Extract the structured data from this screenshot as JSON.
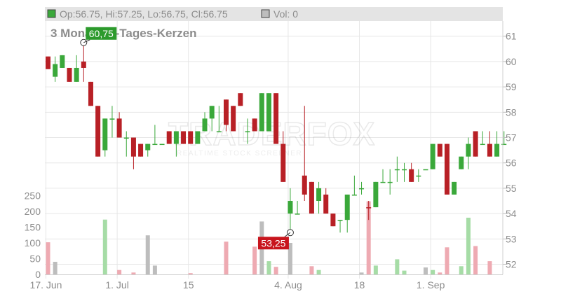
{
  "header": {
    "ohlc_label": "Op:56.75, Hi:57.25, Lo:56.75, Cl:56.75",
    "vol_label": "Vol: 0"
  },
  "title": "3 Monate, 1-Tages-Kerzen",
  "watermark": {
    "brand": "TRADERFOX",
    "tagline": "REALTIME STOCK SCREENER"
  },
  "colors": {
    "up": "#3aa83a",
    "down": "#b82026",
    "up_volume": "#a6dca6",
    "down_volume": "#eeaab2",
    "neutral_volume": "#bdbdbd",
    "header_bg": "#e4e4e4",
    "grid": "#e6e6e6",
    "tick_text": "#8c8c8c",
    "max_badge": "#2c9a2c",
    "min_badge": "#c8151d"
  },
  "chart_data": {
    "type": "candlestick",
    "title": "3 Monate, 1-Tages-Kerzen",
    "x_ticks": [
      {
        "label": "17. Jun",
        "i": 0
      },
      {
        "label": "1. Jul",
        "i": 10
      },
      {
        "label": "15",
        "i": 20
      },
      {
        "label": "4. Aug",
        "i": 34
      },
      {
        "label": "18",
        "i": 44
      },
      {
        "label": "1. Sep",
        "i": 54
      }
    ],
    "price_ticks": [
      52,
      53,
      54,
      55,
      56,
      57,
      58,
      59,
      60,
      61
    ],
    "price_range": [
      51.6,
      61.6
    ],
    "volume_ticks": [
      0,
      50,
      100,
      150,
      200,
      250
    ],
    "volume_range": [
      0,
      260
    ],
    "annotations": [
      {
        "text": "60,75",
        "i": 5,
        "value": 60.75,
        "kind": "max"
      },
      {
        "text": "53,25",
        "i": 34,
        "value": 53.25,
        "kind": "min"
      }
    ],
    "candles": [
      {
        "o": 60.2,
        "h": 60.2,
        "l": 59.7,
        "c": 59.7,
        "v": 102,
        "d": "down"
      },
      {
        "o": 59.4,
        "h": 60.2,
        "l": 59.2,
        "c": 59.9,
        "v": 40,
        "d": "neutral"
      },
      {
        "o": 59.75,
        "h": 60.25,
        "l": 59.75,
        "c": 60.25,
        "v": 0,
        "d": "up"
      },
      {
        "o": 59.75,
        "h": 59.75,
        "l": 59.2,
        "c": 59.2,
        "v": 0,
        "d": "down"
      },
      {
        "o": 59.2,
        "h": 60.25,
        "l": 59.2,
        "c": 59.75,
        "v": 0,
        "d": "up"
      },
      {
        "o": 60.0,
        "h": 60.75,
        "l": 59.2,
        "c": 59.75,
        "v": 0,
        "d": "down"
      },
      {
        "o": 59.2,
        "h": 59.2,
        "l": 58.25,
        "c": 58.25,
        "v": 0,
        "d": "down"
      },
      {
        "o": 58.25,
        "h": 58.25,
        "l": 56.25,
        "c": 56.25,
        "v": 0,
        "d": "down"
      },
      {
        "o": 56.5,
        "h": 57.75,
        "l": 56.25,
        "c": 57.75,
        "v": 174,
        "d": "up"
      },
      {
        "o": 57.75,
        "h": 58.25,
        "l": 57.0,
        "c": 57.75,
        "v": 0,
        "d": "up"
      },
      {
        "o": 57.75,
        "h": 58.0,
        "l": 57.0,
        "c": 57.0,
        "v": 14,
        "d": "down"
      },
      {
        "o": 57.0,
        "h": 57.25,
        "l": 56.25,
        "c": 57.0,
        "v": 0,
        "d": "up"
      },
      {
        "o": 57.0,
        "h": 57.0,
        "l": 55.75,
        "c": 56.25,
        "v": 6,
        "d": "down"
      },
      {
        "o": 56.75,
        "h": 56.75,
        "l": 56.25,
        "c": 56.25,
        "v": 0,
        "d": "down"
      },
      {
        "o": 56.5,
        "h": 56.75,
        "l": 56.25,
        "c": 56.75,
        "v": 124,
        "d": "neutral"
      },
      {
        "o": 56.75,
        "h": 57.5,
        "l": 56.75,
        "c": 56.75,
        "v": 28,
        "d": "neutral"
      },
      {
        "o": 56.75,
        "h": 56.75,
        "l": 56.75,
        "c": 56.75,
        "v": 0,
        "d": "neutral"
      },
      {
        "o": 57.25,
        "h": 57.25,
        "l": 56.75,
        "c": 56.75,
        "v": 0,
        "d": "down"
      },
      {
        "o": 56.75,
        "h": 57.25,
        "l": 56.25,
        "c": 57.25,
        "v": 0,
        "d": "up"
      },
      {
        "o": 57.25,
        "h": 57.25,
        "l": 56.75,
        "c": 56.75,
        "v": 0,
        "d": "down"
      },
      {
        "o": 56.75,
        "h": 57.25,
        "l": 56.75,
        "c": 57.25,
        "v": 4,
        "d": "down"
      },
      {
        "o": 57.25,
        "h": 57.25,
        "l": 56.75,
        "c": 56.75,
        "v": 0,
        "d": "neutral"
      },
      {
        "o": 57.25,
        "h": 58.0,
        "l": 57.25,
        "c": 57.75,
        "v": 0,
        "d": "up"
      },
      {
        "o": 57.75,
        "h": 58.25,
        "l": 57.25,
        "c": 58.25,
        "v": 0,
        "d": "up"
      },
      {
        "o": 57.25,
        "h": 58.25,
        "l": 57.25,
        "c": 57.25,
        "v": 0,
        "d": "neutral"
      },
      {
        "o": 58.5,
        "h": 58.5,
        "l": 57.25,
        "c": 57.5,
        "v": 104,
        "d": "down"
      },
      {
        "o": 58.25,
        "h": 58.25,
        "l": 57.25,
        "c": 57.25,
        "v": 0,
        "d": "down"
      },
      {
        "o": 58.75,
        "h": 58.75,
        "l": 58.25,
        "c": 58.25,
        "v": 0,
        "d": "down"
      },
      {
        "o": 57.25,
        "h": 57.75,
        "l": 56.75,
        "c": 57.25,
        "v": 0,
        "d": "neutral"
      },
      {
        "o": 57.75,
        "h": 57.75,
        "l": 57.25,
        "c": 57.25,
        "v": 88,
        "d": "down"
      },
      {
        "o": 57.25,
        "h": 58.75,
        "l": 57.25,
        "c": 58.75,
        "v": 168,
        "d": "neutral"
      },
      {
        "o": 57.25,
        "h": 58.75,
        "l": 57.25,
        "c": 58.75,
        "v": 42,
        "d": "up"
      },
      {
        "o": 58.75,
        "h": 58.75,
        "l": 56.75,
        "c": 56.75,
        "v": 24,
        "d": "down"
      },
      {
        "o": 56.75,
        "h": 57.25,
        "l": 55.25,
        "c": 55.25,
        "v": 0,
        "d": "down"
      },
      {
        "o": 54.5,
        "h": 55.0,
        "l": 53.25,
        "c": 54.0,
        "v": 100,
        "d": "neutral"
      },
      {
        "o": 54.0,
        "h": 54.5,
        "l": 54.0,
        "c": 54.0,
        "v": 0,
        "d": "neutral"
      },
      {
        "o": 55.5,
        "h": 58.25,
        "l": 54.5,
        "c": 54.75,
        "v": 0,
        "d": "down"
      },
      {
        "o": 55.25,
        "h": 55.25,
        "l": 54.0,
        "c": 54.0,
        "v": 26,
        "d": "down"
      },
      {
        "o": 55.0,
        "h": 55.25,
        "l": 54.0,
        "c": 54.5,
        "v": 14,
        "d": "up"
      },
      {
        "o": 54.75,
        "h": 55.0,
        "l": 54.0,
        "c": 54.0,
        "v": 0,
        "d": "down"
      },
      {
        "o": 54.0,
        "h": 54.0,
        "l": 53.5,
        "c": 53.5,
        "v": 0,
        "d": "down"
      },
      {
        "o": 53.75,
        "h": 53.75,
        "l": 53.25,
        "c": 53.75,
        "v": 0,
        "d": "up"
      },
      {
        "o": 53.75,
        "h": 54.75,
        "l": 53.25,
        "c": 54.75,
        "v": 0,
        "d": "up"
      },
      {
        "o": 54.75,
        "h": 55.5,
        "l": 54.75,
        "c": 54.75,
        "v": 0,
        "d": "neutral"
      },
      {
        "o": 55.0,
        "h": 55.25,
        "l": 54.75,
        "c": 55.0,
        "v": 6,
        "d": "neutral"
      },
      {
        "o": 54.25,
        "h": 54.5,
        "l": 53.75,
        "c": 54.25,
        "v": 232,
        "d": "down"
      },
      {
        "o": 54.25,
        "h": 55.25,
        "l": 54.25,
        "c": 55.25,
        "v": 28,
        "d": "up"
      },
      {
        "o": 55.25,
        "h": 55.75,
        "l": 55.25,
        "c": 55.25,
        "v": 0,
        "d": "up"
      },
      {
        "o": 55.25,
        "h": 55.75,
        "l": 54.75,
        "c": 55.25,
        "v": 0,
        "d": "up"
      },
      {
        "o": 55.75,
        "h": 56.25,
        "l": 55.25,
        "c": 55.75,
        "v": 48,
        "d": "up"
      },
      {
        "o": 55.75,
        "h": 56.0,
        "l": 55.25,
        "c": 55.75,
        "v": 12,
        "d": "up"
      },
      {
        "o": 55.75,
        "h": 56.0,
        "l": 55.25,
        "c": 55.25,
        "v": 0,
        "d": "down"
      },
      {
        "o": 55.5,
        "h": 55.75,
        "l": 55.25,
        "c": 55.5,
        "v": 0,
        "d": "up"
      },
      {
        "o": 55.75,
        "h": 55.75,
        "l": 55.75,
        "c": 55.75,
        "v": 22,
        "d": "neutral"
      },
      {
        "o": 55.75,
        "h": 56.75,
        "l": 55.75,
        "c": 56.75,
        "v": 14,
        "d": "up"
      },
      {
        "o": 56.75,
        "h": 56.75,
        "l": 56.25,
        "c": 56.25,
        "v": 6,
        "d": "down"
      },
      {
        "o": 56.75,
        "h": 56.75,
        "l": 54.75,
        "c": 54.75,
        "v": 86,
        "d": "down"
      },
      {
        "o": 54.75,
        "h": 55.25,
        "l": 54.75,
        "c": 55.25,
        "v": 0,
        "d": "up"
      },
      {
        "o": 55.75,
        "h": 56.25,
        "l": 55.75,
        "c": 56.25,
        "v": 26,
        "d": "up"
      },
      {
        "o": 56.25,
        "h": 57.0,
        "l": 55.75,
        "c": 56.75,
        "v": 180,
        "d": "up"
      },
      {
        "o": 57.25,
        "h": 57.25,
        "l": 56.25,
        "c": 56.25,
        "v": 90,
        "d": "down"
      },
      {
        "o": 56.75,
        "h": 57.25,
        "l": 56.75,
        "c": 56.75,
        "v": 0,
        "d": "up"
      },
      {
        "o": 56.75,
        "h": 57.25,
        "l": 56.25,
        "c": 56.25,
        "v": 42,
        "d": "down"
      },
      {
        "o": 56.25,
        "h": 57.25,
        "l": 56.25,
        "c": 56.75,
        "v": 0,
        "d": "up"
      },
      {
        "o": 56.75,
        "h": 57.25,
        "l": 56.75,
        "c": 56.75,
        "v": 0,
        "d": "up"
      }
    ]
  }
}
